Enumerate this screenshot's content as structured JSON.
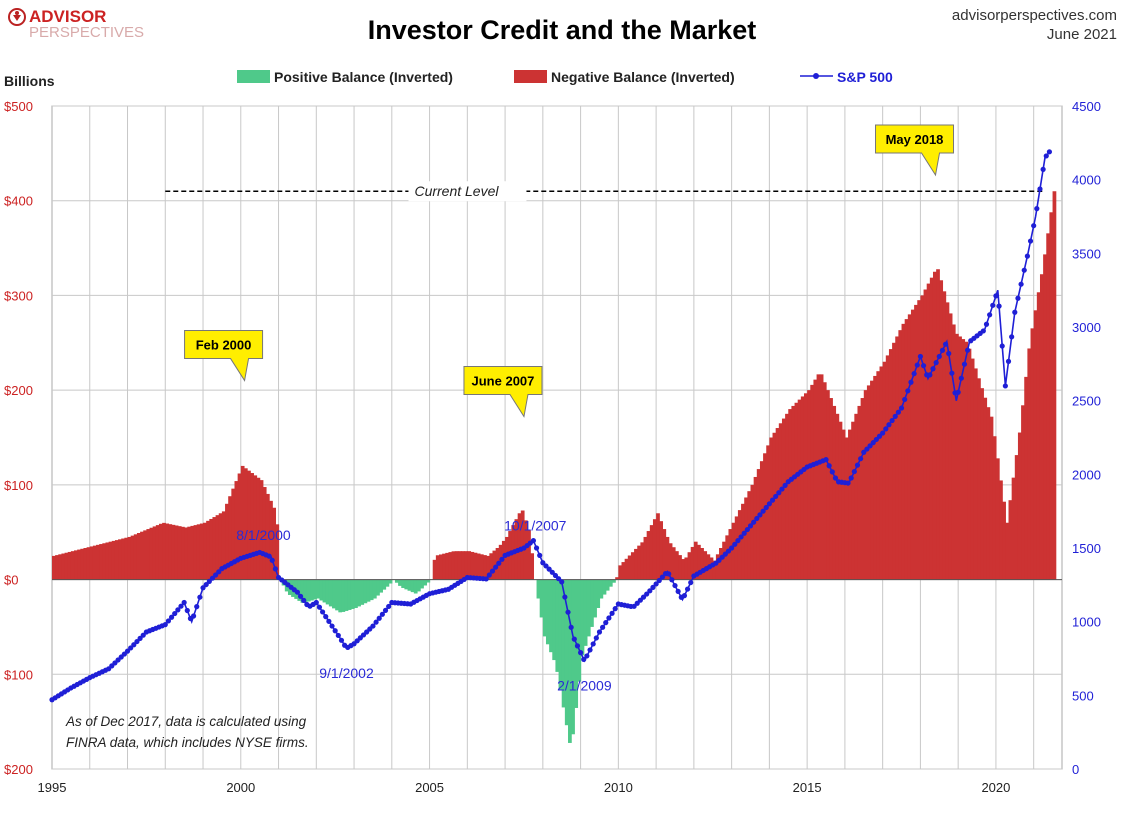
{
  "header": {
    "brand_line1": "ADVISOR",
    "brand_line2": "PERSPECTIVES",
    "site": "advisorperspectives.com",
    "date": "June 2021"
  },
  "chart_data": {
    "type": "bar",
    "title": "Investor Credit and the Market",
    "ylabel": "Billions",
    "legend": {
      "placement": "top",
      "entries": [
        "Positive Balance (Inverted)",
        "Negative Balance (Inverted)",
        "S&P 500"
      ]
    },
    "colors": {
      "positive": "#4fc98a",
      "negative": "#cc3333",
      "sp500": "#1f1fd6",
      "left_axis": "#cc2222",
      "right_axis": "#1f1fd6",
      "reference_line": "#000000"
    },
    "grid": true,
    "x_axis": {
      "range": [
        1995,
        2021.75
      ],
      "ticks": [
        "1995",
        "2000",
        "2005",
        "2010",
        "2015",
        "2020"
      ]
    },
    "left_axis": {
      "range": [
        -200,
        500
      ],
      "ticks": [
        {
          "value": 500,
          "label": "$500"
        },
        {
          "value": 400,
          "label": "$400"
        },
        {
          "value": 300,
          "label": "$300"
        },
        {
          "value": 200,
          "label": "$200"
        },
        {
          "value": 100,
          "label": "$100"
        },
        {
          "value": 0,
          "label": "$0"
        },
        {
          "value": -100,
          "label": "$100"
        },
        {
          "value": -200,
          "label": "$200"
        }
      ]
    },
    "right_axis": {
      "range": [
        0,
        4500
      ],
      "ticks": [
        "0",
        "500",
        "1000",
        "1500",
        "2000",
        "2500",
        "3000",
        "3500",
        "4000",
        "4500"
      ]
    },
    "credit_balance": {
      "unit": "billions of dollars, inverted (positive = negative balance)",
      "points": [
        [
          1995,
          25
        ],
        [
          1996,
          35
        ],
        [
          1997,
          45
        ],
        [
          1997.9,
          60
        ],
        [
          1998.5,
          55
        ],
        [
          1999,
          60
        ],
        [
          1999.5,
          72
        ],
        [
          2000,
          120
        ],
        [
          2000.5,
          105
        ],
        [
          2000.9,
          70
        ],
        [
          2001,
          0
        ],
        [
          2001.2,
          -15
        ],
        [
          2001.6,
          -25
        ],
        [
          2002,
          -20
        ],
        [
          2002.6,
          -35
        ],
        [
          2003,
          -30
        ],
        [
          2003.5,
          -20
        ],
        [
          2003.9,
          -5
        ],
        [
          2004,
          0
        ],
        [
          2004.2,
          -8
        ],
        [
          2004.6,
          -15
        ],
        [
          2005,
          0
        ],
        [
          2005.1,
          25
        ],
        [
          2005.6,
          30
        ],
        [
          2006,
          30
        ],
        [
          2006.5,
          25
        ],
        [
          2006.8,
          35
        ],
        [
          2007,
          45
        ],
        [
          2007.4,
          75
        ],
        [
          2007.6,
          50
        ],
        [
          2007.75,
          0
        ],
        [
          2008,
          -60
        ],
        [
          2008.3,
          -90
        ],
        [
          2008.7,
          -180
        ],
        [
          2009,
          -80
        ],
        [
          2009.5,
          -20
        ],
        [
          2009.9,
          0
        ],
        [
          2010,
          15
        ],
        [
          2010.6,
          40
        ],
        [
          2011,
          70
        ],
        [
          2011.3,
          40
        ],
        [
          2011.7,
          20
        ],
        [
          2012,
          40
        ],
        [
          2012.5,
          20
        ],
        [
          2013,
          60
        ],
        [
          2013.5,
          100
        ],
        [
          2014,
          150
        ],
        [
          2014.5,
          180
        ],
        [
          2015,
          200
        ],
        [
          2015.3,
          220
        ],
        [
          2015.8,
          170
        ],
        [
          2016,
          150
        ],
        [
          2016.5,
          200
        ],
        [
          2017,
          230
        ],
        [
          2017.5,
          270
        ],
        [
          2018,
          300
        ],
        [
          2018.4,
          330
        ],
        [
          2018.9,
          260
        ],
        [
          2019.2,
          250
        ],
        [
          2019.6,
          200
        ],
        [
          2019.85,
          170
        ],
        [
          2020.1,
          100
        ],
        [
          2020.25,
          60
        ],
        [
          2020.6,
          160
        ],
        [
          2020.85,
          250
        ],
        [
          2021.2,
          330
        ],
        [
          2021.5,
          410
        ]
      ]
    },
    "sp500": {
      "name": "S&P 500",
      "points": [
        [
          1995,
          470
        ],
        [
          1995.5,
          550
        ],
        [
          1996,
          620
        ],
        [
          1996.5,
          680
        ],
        [
          1997,
          800
        ],
        [
          1997.5,
          930
        ],
        [
          1998,
          980
        ],
        [
          1998.5,
          1130
        ],
        [
          1998.7,
          1000
        ],
        [
          1999,
          1230
        ],
        [
          1999.5,
          1360
        ],
        [
          2000,
          1430
        ],
        [
          2000.5,
          1470
        ],
        [
          2000.8,
          1440
        ],
        [
          2001,
          1300
        ],
        [
          2001.5,
          1200
        ],
        [
          2001.8,
          1100
        ],
        [
          2002,
          1130
        ],
        [
          2002.6,
          900
        ],
        [
          2002.8,
          820
        ],
        [
          2003,
          850
        ],
        [
          2003.5,
          970
        ],
        [
          2004,
          1130
        ],
        [
          2004.5,
          1120
        ],
        [
          2005,
          1190
        ],
        [
          2005.5,
          1220
        ],
        [
          2006,
          1300
        ],
        [
          2006.5,
          1290
        ],
        [
          2007,
          1450
        ],
        [
          2007.5,
          1500
        ],
        [
          2007.75,
          1550
        ],
        [
          2008,
          1400
        ],
        [
          2008.5,
          1270
        ],
        [
          2008.8,
          900
        ],
        [
          2009.1,
          735
        ],
        [
          2009.5,
          930
        ],
        [
          2010,
          1120
        ],
        [
          2010.4,
          1100
        ],
        [
          2010.8,
          1200
        ],
        [
          2011.3,
          1340
        ],
        [
          2011.7,
          1150
        ],
        [
          2012,
          1310
        ],
        [
          2012.6,
          1400
        ],
        [
          2013,
          1500
        ],
        [
          2013.5,
          1650
        ],
        [
          2014,
          1800
        ],
        [
          2014.5,
          1950
        ],
        [
          2015,
          2050
        ],
        [
          2015.5,
          2100
        ],
        [
          2015.8,
          1950
        ],
        [
          2016.1,
          1940
        ],
        [
          2016.5,
          2150
        ],
        [
          2017,
          2280
        ],
        [
          2017.5,
          2450
        ],
        [
          2018,
          2800
        ],
        [
          2018.2,
          2650
        ],
        [
          2018.7,
          2900
        ],
        [
          2018.95,
          2500
        ],
        [
          2019.3,
          2900
        ],
        [
          2019.7,
          2980
        ],
        [
          2020.05,
          3250
        ],
        [
          2020.25,
          2600
        ],
        [
          2020.5,
          3100
        ],
        [
          2020.85,
          3500
        ],
        [
          2021.05,
          3750
        ],
        [
          2021.3,
          4150
        ],
        [
          2021.45,
          4200
        ]
      ]
    },
    "reference": {
      "label": "Current Level",
      "value": 410
    },
    "annotations": {
      "callouts": [
        {
          "label": "Feb 2000",
          "x": 2000.1,
          "y": 113
        },
        {
          "label": "June 2007",
          "x": 2007.5,
          "y": 75
        },
        {
          "label": "May 2018",
          "x": 2018.4,
          "y": 330
        }
      ],
      "sp_labels": [
        {
          "label": "8/1/2000",
          "x": 2000.6,
          "sp": 1485
        },
        {
          "label": "10/1/2007",
          "x": 2007.8,
          "sp": 1550
        },
        {
          "label": "9/1/2002",
          "x": 2002.8,
          "sp": 820
        },
        {
          "label": "2/1/2009",
          "x": 2009.1,
          "sp": 735
        }
      ],
      "footnote_line1": "As of Dec 2017,  data is calculated using",
      "footnote_line2": "FINRA data, which includes NYSE firms."
    }
  }
}
